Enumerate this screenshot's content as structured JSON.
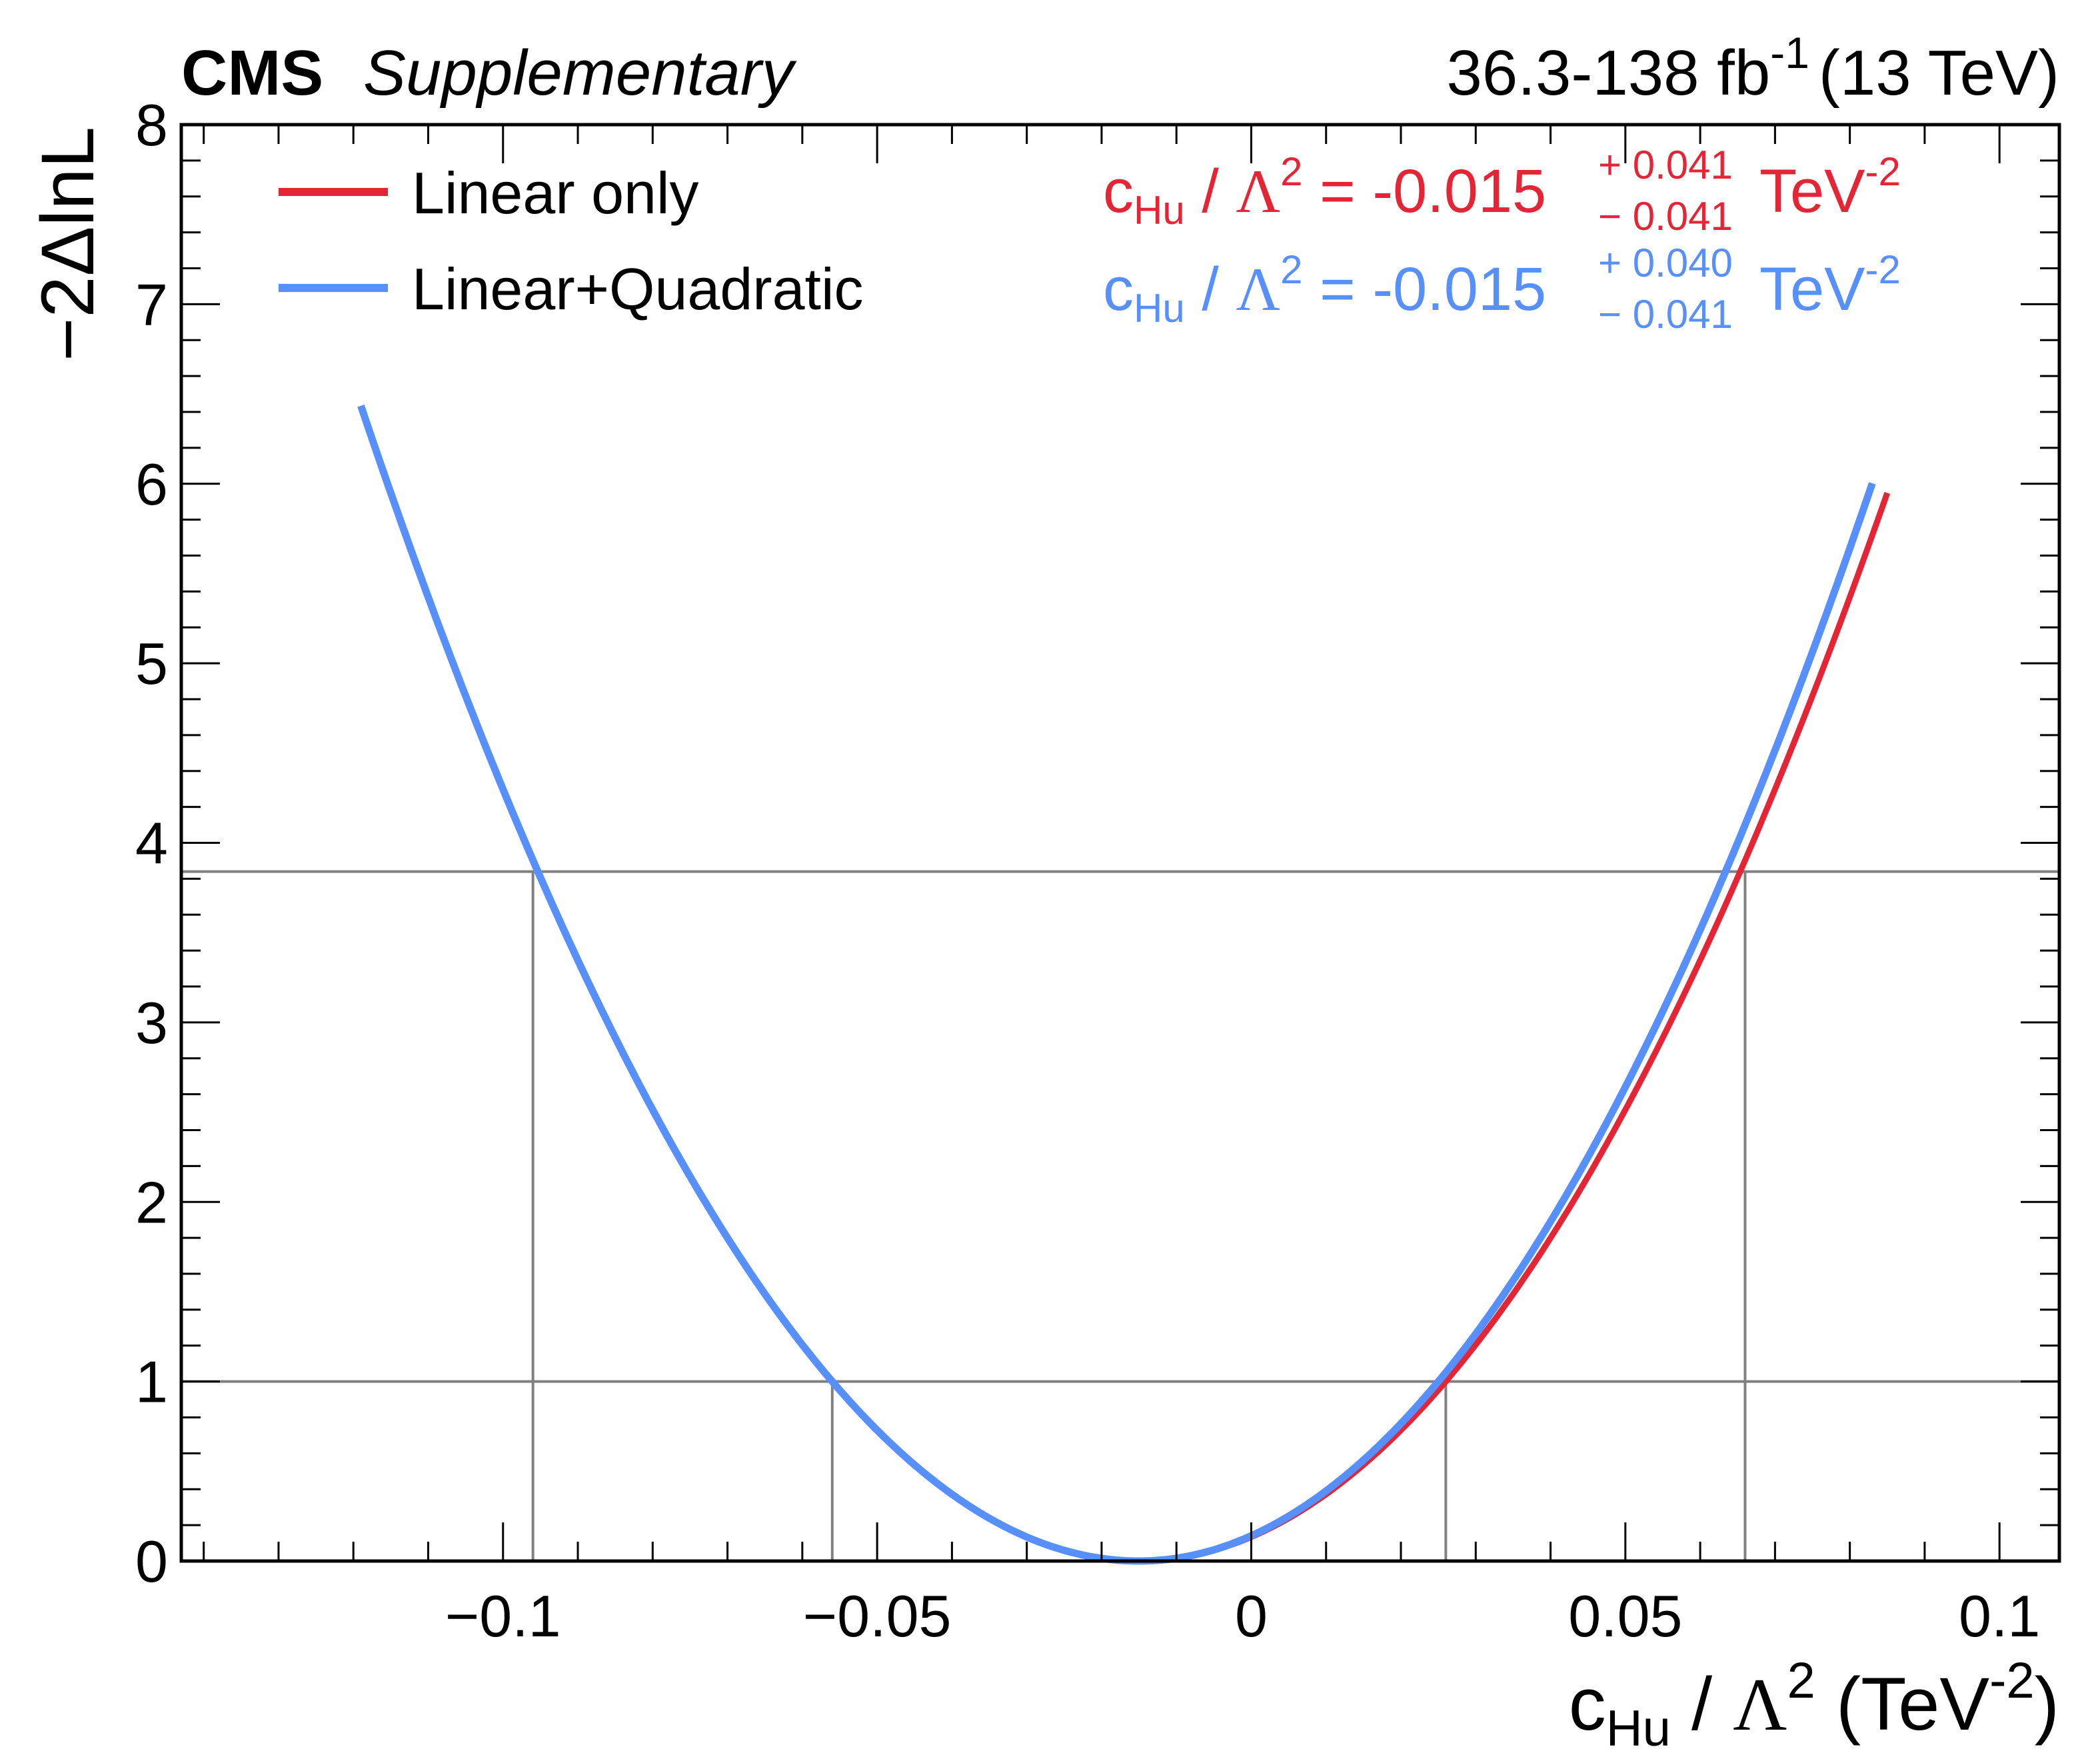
{
  "header": {
    "experiment": "CMS",
    "qualifier": "Supplementary",
    "lumi_value": "36.3-138 fb",
    "lumi_exp": "-1",
    "energy": "(13 TeV)"
  },
  "chart_data": {
    "type": "line",
    "xlabel": {
      "c": "c",
      "sub": "Hu",
      "slash": " / ",
      "lambda": "Λ",
      "pow": "2",
      "unit_open": " (TeV",
      "unit_exp": "-2",
      "unit_close": ")"
    },
    "ylabel": "−2ΔlnL",
    "xlim": [
      -0.143,
      0.108
    ],
    "ylim": [
      0,
      8
    ],
    "x_ticks": [
      {
        "value": -0.1,
        "label": "−0.1"
      },
      {
        "value": -0.05,
        "label": "−0.05"
      },
      {
        "value": 0,
        "label": "0"
      },
      {
        "value": 0.05,
        "label": "0.05"
      },
      {
        "value": 0.1,
        "label": "0.1"
      }
    ],
    "y_ticks": [
      {
        "value": 0,
        "label": "0"
      },
      {
        "value": 1,
        "label": "1"
      },
      {
        "value": 2,
        "label": "2"
      },
      {
        "value": 3,
        "label": "3"
      },
      {
        "value": 4,
        "label": "4"
      },
      {
        "value": 5,
        "label": "5"
      },
      {
        "value": 6,
        "label": "6"
      },
      {
        "value": 7,
        "label": "7"
      },
      {
        "value": 8,
        "label": "8"
      }
    ],
    "reference_lines": [
      1,
      3.84
    ],
    "interval_markers": [
      {
        "x": -0.056,
        "y": 1
      },
      {
        "x": 0.026,
        "y": 1
      },
      {
        "x": -0.096,
        "y": 3.84
      },
      {
        "x": 0.066,
        "y": 3.84
      }
    ],
    "legend_position": "top-left",
    "series": [
      {
        "name": "Linear only",
        "color": "#e42536",
        "best_fit": -0.015,
        "sigma_up": 0.041,
        "sigma_down": 0.041,
        "x_min": -0.118,
        "x_max": 0.085
      },
      {
        "name": "Linear+Quadratic",
        "color": "#5790fc",
        "best_fit": -0.015,
        "sigma_up": 0.04,
        "sigma_down": 0.041,
        "x_min": -0.119,
        "x_max": 0.083
      }
    ],
    "annotations": [
      {
        "c": "c",
        "sub": "Hu",
        "slash": " / ",
        "lambda": "Λ",
        "pow": "2",
        "equals": " = -0.015",
        "plus": "+ 0.041",
        "minus": "− 0.041",
        "unit": " TeV",
        "unit_exp": "-2",
        "color": "#e42536"
      },
      {
        "c": "c",
        "sub": "Hu",
        "slash": " / ",
        "lambda": "Λ",
        "pow": "2",
        "equals": " = -0.015",
        "plus": "+ 0.040",
        "minus": "− 0.041",
        "unit": " TeV",
        "unit_exp": "-2",
        "color": "#5790fc"
      }
    ]
  }
}
